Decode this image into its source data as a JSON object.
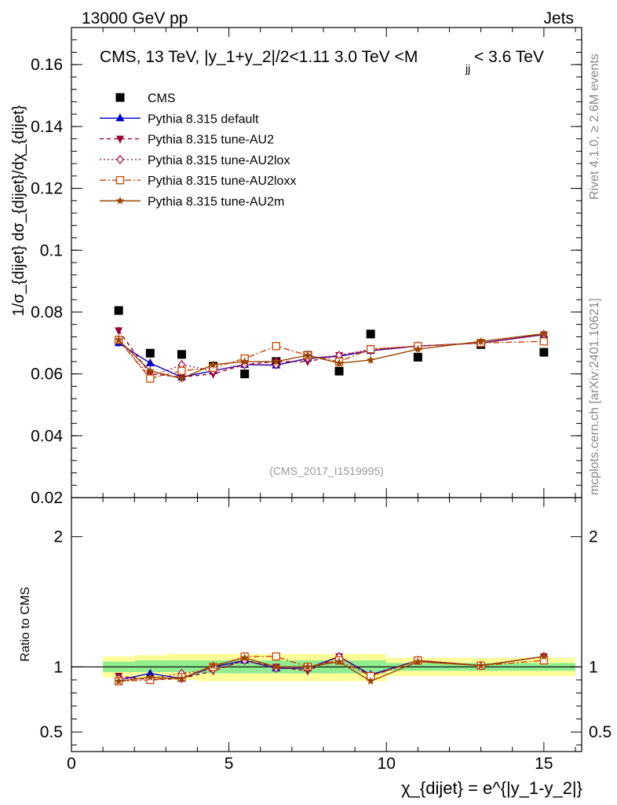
{
  "header": {
    "left": "13000 GeV pp",
    "right": "Jets"
  },
  "side_labels": {
    "rivet": "Rivet 4.1.0, ≥ 2.6M events",
    "mcplots": "mcplots.cern.ch [arXiv:2401.10621]"
  },
  "colors": {
    "cms": "#000000",
    "default": "#0000cc",
    "au2": "#990033",
    "au2lox": "#aa1144",
    "au2loxx": "#cc4400",
    "au2m": "#994400",
    "band_inner": "#90ee90",
    "band_outer": "#ffff99"
  },
  "chart_data": [
    {
      "type": "scatter",
      "panel": "main",
      "title": "CMS, 13 TeV, |y_1+y_2|/2<1.11 3.0 TeV <M",
      "title_sub": "jj",
      "title_tail": "< 3.6 TeV",
      "ylabel": "1/σ_{dijet} dσ_{dijet}/dχ_{dijet}",
      "xlim": [
        0,
        16.2
      ],
      "ylim": [
        0.02,
        0.172
      ],
      "yticks": [
        0.02,
        0.04,
        0.06,
        0.08,
        0.1,
        0.12,
        0.14,
        0.16
      ],
      "ytick_labels": [
        "0.02",
        "0.04",
        "0.06",
        "0.08",
        "0.1",
        "0.12",
        "0.14",
        "0.16"
      ],
      "watermark": "(CMS_2017_I1519995)",
      "x": [
        1.5,
        2.5,
        3.5,
        4.5,
        5.5,
        6.5,
        7.5,
        8.5,
        9.5,
        11,
        13,
        15
      ],
      "series": [
        {
          "name": "CMS",
          "key": "cms",
          "marker": "square",
          "dash": "",
          "values": [
            0.0805,
            0.0667,
            0.0663,
            0.0625,
            0.06,
            0.064,
            0.066,
            0.0609,
            0.0729,
            0.0654,
            0.0695,
            0.067
          ]
        },
        {
          "name": "Pythia 8.315 default",
          "key": "default",
          "marker": "triangle",
          "dash": "",
          "values": [
            0.07,
            0.0635,
            0.059,
            0.061,
            0.063,
            0.0628,
            0.065,
            0.0657,
            0.0675,
            0.069,
            0.07,
            0.0727
          ]
        },
        {
          "name": "Pythia 8.315 tune-AU2",
          "key": "au2",
          "marker": "tridown",
          "dash": "5,4",
          "values": [
            0.074,
            0.06,
            0.059,
            0.06,
            0.063,
            0.064,
            0.064,
            0.066,
            0.0675,
            0.069,
            0.07,
            0.0727
          ]
        },
        {
          "name": "Pythia 8.315 tune-AU2lox",
          "key": "au2lox",
          "marker": "diamond",
          "dash": "2,3",
          "values": [
            0.071,
            0.059,
            0.063,
            0.061,
            0.063,
            0.063,
            0.065,
            0.066,
            0.068,
            0.069,
            0.07,
            0.0727
          ]
        },
        {
          "name": "Pythia 8.315 tune-AU2loxx",
          "key": "au2loxx",
          "marker": "opensquare",
          "dash": "8,3,2,3",
          "values": [
            0.071,
            0.0585,
            0.061,
            0.062,
            0.065,
            0.069,
            0.066,
            0.064,
            0.068,
            0.069,
            0.07,
            0.0705
          ]
        },
        {
          "name": "Pythia 8.315 tune-AU2m",
          "key": "au2m",
          "marker": "star",
          "dash": "",
          "values": [
            0.071,
            0.061,
            0.0585,
            0.063,
            0.064,
            0.064,
            0.066,
            0.0635,
            0.0645,
            0.068,
            0.0705,
            0.073
          ]
        }
      ]
    },
    {
      "type": "line",
      "panel": "ratio",
      "ylabel": "Ratio to CMS",
      "xlabel": "χ_{dijet} = e^{|y_1-y_2|}",
      "xlim": [
        0,
        16.2
      ],
      "ylim": [
        0.35,
        2.3
      ],
      "xticks": [
        0,
        5,
        10,
        15
      ],
      "xtick_labels": [
        "0",
        "5",
        "10",
        "15"
      ],
      "yticks": [
        0.5,
        1,
        2
      ],
      "ytick_labels": [
        "0.5",
        "1",
        "2"
      ],
      "bands": {
        "edges": [
          1,
          2,
          3,
          4,
          5,
          6,
          7,
          8,
          9,
          10,
          12,
          14,
          16
        ],
        "inner_lo": [
          0.96,
          0.96,
          0.96,
          0.95,
          0.95,
          0.95,
          0.95,
          0.95,
          0.95,
          0.97,
          0.97,
          0.97
        ],
        "inner_hi": [
          1.04,
          1.05,
          1.05,
          1.05,
          1.05,
          1.05,
          1.05,
          1.05,
          1.05,
          1.03,
          1.03,
          1.03
        ],
        "outer_lo": [
          0.92,
          0.91,
          0.9,
          0.89,
          0.89,
          0.89,
          0.89,
          0.89,
          0.89,
          0.93,
          0.93,
          0.93
        ],
        "outer_hi": [
          1.08,
          1.09,
          1.1,
          1.1,
          1.1,
          1.1,
          1.1,
          1.1,
          1.1,
          1.07,
          1.07,
          1.07
        ]
      },
      "x": [
        1.5,
        2.5,
        3.5,
        4.5,
        5.5,
        6.5,
        7.5,
        8.5,
        9.5,
        11,
        13,
        15
      ],
      "series": [
        {
          "name": "Pythia 8.315 default",
          "key": "default",
          "marker": "triangle",
          "dash": "",
          "values": [
            0.9,
            0.95,
            0.91,
            1.0,
            1.05,
            0.99,
            0.99,
            1.08,
            0.94,
            1.05,
            1.01,
            1.08
          ]
        },
        {
          "name": "Pythia 8.315 tune-AU2",
          "key": "au2",
          "marker": "tridown",
          "dash": "5,4",
          "values": [
            0.93,
            0.9,
            0.91,
            0.97,
            1.05,
            1.0,
            0.97,
            1.08,
            0.93,
            1.05,
            1.01,
            1.08
          ]
        },
        {
          "name": "Pythia 8.315 tune-AU2lox",
          "key": "au2lox",
          "marker": "diamond",
          "dash": "2,3",
          "values": [
            0.91,
            0.91,
            0.95,
            0.98,
            1.05,
            0.99,
            0.99,
            1.08,
            0.93,
            1.05,
            1.01,
            1.08
          ]
        },
        {
          "name": "Pythia 8.315 tune-AU2loxx",
          "key": "au2loxx",
          "marker": "opensquare",
          "dash": "8,3,2,3",
          "values": [
            0.89,
            0.9,
            0.92,
            1.0,
            1.08,
            1.08,
            1.0,
            1.05,
            0.93,
            1.05,
            1.01,
            1.05
          ]
        },
        {
          "name": "Pythia 8.315 tune-AU2m",
          "key": "au2m",
          "marker": "star",
          "dash": "",
          "values": [
            0.89,
            0.92,
            0.91,
            1.01,
            1.07,
            1.0,
            1.0,
            1.04,
            0.89,
            1.04,
            1.01,
            1.08
          ]
        }
      ]
    }
  ]
}
